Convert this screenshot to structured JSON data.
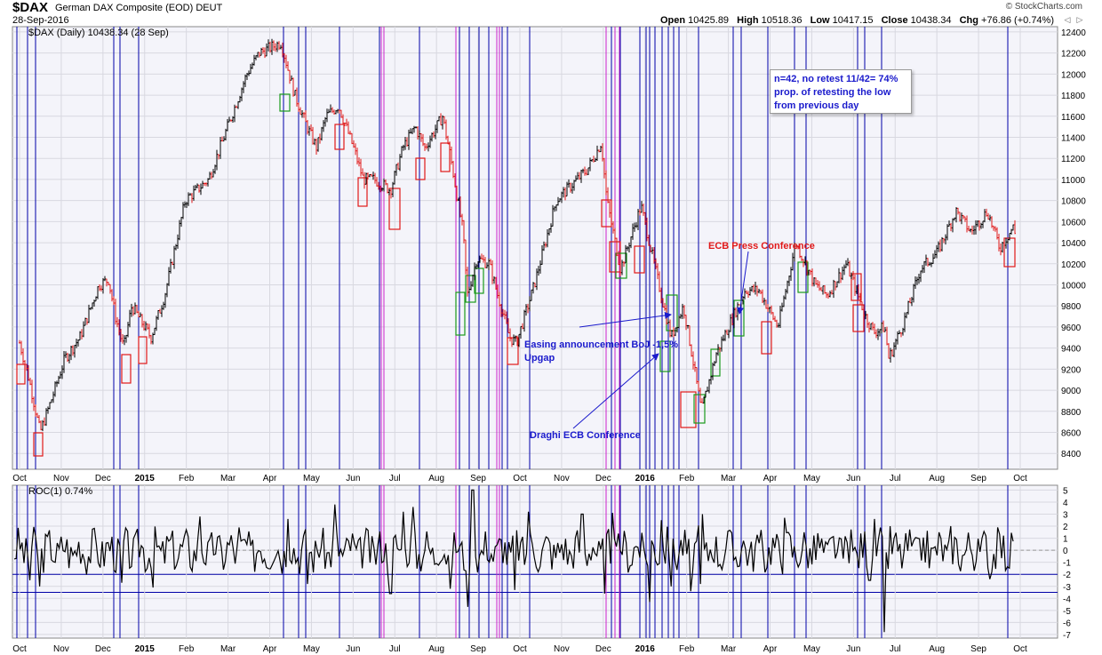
{
  "header": {
    "symbol": "$DAX",
    "name": "German DAX Composite (EOD)",
    "exchange": "DEUT",
    "date": "28-Sep-2016",
    "brand": "© StockCharts.com",
    "open_label": "Open",
    "open": "10425.89",
    "high_label": "High",
    "high": "10518.36",
    "low_label": "Low",
    "low": "10417.15",
    "close_label": "Close",
    "close": "10438.34",
    "chg_label": "Chg",
    "chg": "+76.86 (+0.74%)"
  },
  "price_legend": "$DAX (Daily) 10438.34 (28 Sep)",
  "roc_legend": "ROC(1) 0.74%",
  "annotations": {
    "easing_line1": "Easing announcement BoJ -1,5%",
    "easing_line2": "Upgap",
    "draghi": "Draghi ECB Conference",
    "ecb_press": "ECB Press Conference",
    "info_line1": "n=42,  no retest 11/42= 74%",
    "info_line2": "prop. of retesting the low",
    "info_line3": "from previous day"
  },
  "colors": {
    "up_bar": "#000000",
    "down_bar": "#e01818",
    "blue_line": "#0000a8",
    "magenta_line": "#cc22cc",
    "annotation_blue": "#1a1acc",
    "annotation_red": "#e01818",
    "grid": "#d8d8e0",
    "panel_bg": "#f4f4fa"
  },
  "chart_data": [
    {
      "type": "line",
      "title": "$DAX (Daily)",
      "x_ticks": [
        "Oct",
        "Nov",
        "Dec",
        "2015",
        "Feb",
        "Mar",
        "Apr",
        "May",
        "Jun",
        "Jul",
        "Aug",
        "Sep",
        "Oct",
        "Nov",
        "Dec",
        "2016",
        "Feb",
        "Mar",
        "Apr",
        "May",
        "Jun",
        "Jul",
        "Aug",
        "Sep",
        "Oct"
      ],
      "y_ticks": [
        8400,
        8600,
        8800,
        9000,
        9200,
        9400,
        9600,
        9800,
        10000,
        10200,
        10400,
        10600,
        10800,
        11000,
        11200,
        11400,
        11600,
        11800,
        12000,
        12200,
        12400
      ],
      "ylim": [
        8250,
        12450
      ],
      "series": [
        {
          "x": [
            "2014-10-01",
            "2014-10-08",
            "2014-10-16",
            "2014-10-24",
            "2014-11-03",
            "2014-11-14",
            "2014-11-28",
            "2014-12-05",
            "2014-12-10",
            "2014-12-16",
            "2014-12-22",
            "2015-01-05",
            "2015-01-15",
            "2015-01-30",
            "2015-02-16",
            "2015-03-02",
            "2015-03-16",
            "2015-03-25",
            "2015-04-10",
            "2015-04-20",
            "2015-04-29",
            "2015-05-06",
            "2015-05-13",
            "2015-05-22",
            "2015-06-02",
            "2015-06-09",
            "2015-06-17",
            "2015-06-29",
            "2015-07-08",
            "2015-07-17",
            "2015-07-24",
            "2015-08-06",
            "2015-08-12",
            "2015-08-21",
            "2015-08-24",
            "2015-08-31",
            "2015-09-09",
            "2015-09-24",
            "2015-09-29",
            "2015-10-12",
            "2015-10-28",
            "2015-11-20",
            "2015-11-30",
            "2015-12-04",
            "2015-12-14",
            "2015-12-29",
            "2016-01-11",
            "2016-01-20",
            "2016-01-29",
            "2016-02-04",
            "2016-02-11",
            "2016-02-22",
            "2016-03-07",
            "2016-03-14",
            "2016-03-24",
            "2016-04-07",
            "2016-04-20",
            "2016-05-04",
            "2016-05-13",
            "2016-05-27",
            "2016-06-10",
            "2016-06-16",
            "2016-06-24",
            "2016-06-27",
            "2016-07-08",
            "2016-07-20",
            "2016-08-01",
            "2016-08-15",
            "2016-08-26",
            "2016-09-07",
            "2016-09-16",
            "2016-09-26",
            "2016-09-28"
          ],
          "values": [
            9450,
            9100,
            8600,
            8900,
            9300,
            9500,
            10000,
            10050,
            9700,
            9400,
            9800,
            9500,
            9900,
            10800,
            11000,
            11500,
            12000,
            12200,
            12300,
            11800,
            11500,
            11300,
            11600,
            11700,
            11300,
            11000,
            11000,
            10900,
            11300,
            11500,
            11300,
            11600,
            11200,
            10500,
            9900,
            10250,
            10200,
            9500,
            9450,
            10000,
            10800,
            11100,
            11350,
            10800,
            10150,
            10750,
            10000,
            9500,
            9800,
            9350,
            8800,
            9350,
            9750,
            9950,
            9950,
            9600,
            10400,
            10000,
            9900,
            10200,
            9700,
            9550,
            9600,
            9300,
            9650,
            10150,
            10300,
            10700,
            10500,
            10700,
            10350,
            10550,
            10438
          ]
        }
      ]
    },
    {
      "type": "line",
      "title": "ROC(1)",
      "y_ticks": [
        -7,
        -6,
        -5,
        -4,
        -3,
        -2,
        -1,
        0,
        1,
        2,
        3,
        4,
        5
      ],
      "ylim": [
        -7.3,
        5.4
      ],
      "series": [
        {
          "x": [
            "2014-10-08",
            "2014-10-16",
            "2014-12-15",
            "2015-01-06",
            "2015-02-10",
            "2015-03-10",
            "2015-04-15",
            "2015-04-29",
            "2015-05-19",
            "2015-06-29",
            "2015-07-08",
            "2015-07-15",
            "2015-08-11",
            "2015-08-24",
            "2015-08-28",
            "2015-09-28",
            "2015-10-08",
            "2015-11-16",
            "2015-12-03",
            "2015-12-08",
            "2016-01-04",
            "2016-01-13",
            "2016-01-20",
            "2016-02-03",
            "2016-02-11",
            "2016-02-12",
            "2016-04-12",
            "2016-06-13",
            "2016-06-16",
            "2016-06-24",
            "2016-06-28",
            "2016-08-11",
            "2016-09-09",
            "2016-09-28"
          ],
          "values": [
            -2.5,
            -3.0,
            -2.7,
            -3.1,
            2.8,
            1.9,
            2.6,
            -2.8,
            3.8,
            -3.6,
            3.2,
            3.6,
            -3.2,
            -4.7,
            5.0,
            -3.3,
            3.2,
            3.0,
            -3.6,
            3.1,
            -4.3,
            2.5,
            -3.0,
            -3.4,
            -2.8,
            3.0,
            2.7,
            -2.5,
            2.6,
            -6.8,
            2.0,
            2.0,
            -2.4,
            0.74
          ]
        }
      ]
    }
  ]
}
